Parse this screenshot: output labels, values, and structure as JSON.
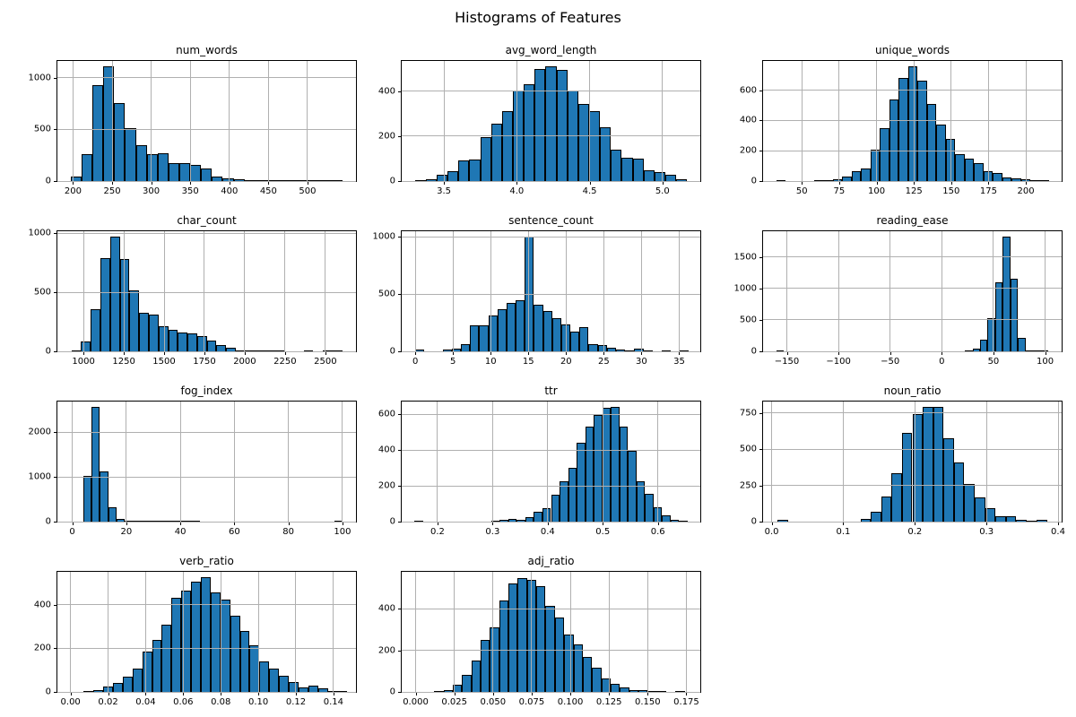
{
  "figure": {
    "title": "Histograms of Features"
  },
  "colors": {
    "bar_fill": "#1f77b4",
    "bar_edge": "#000000",
    "grid": "#b0b0b0",
    "spine": "#000000"
  },
  "chart_data": {
    "type": "bar",
    "subtype": "histogram-grid",
    "title": "Histograms of Features",
    "grid_on": true,
    "layout": {
      "rows": 4,
      "cols": 3
    },
    "subplots": [
      {
        "id": "num_words",
        "title": "num_words",
        "row": 0,
        "col": 0,
        "xlim": [
          180,
          562
        ],
        "ylim": [
          0,
          1165
        ],
        "xticks": [
          200,
          250,
          300,
          350,
          400,
          450,
          500
        ],
        "xtick_labels": [
          "200",
          "250",
          "300",
          "350",
          "400",
          "450",
          "500"
        ],
        "yticks": [
          0,
          500,
          1000
        ],
        "ytick_labels": [
          "0",
          "500",
          "1000"
        ],
        "bin_start": 197,
        "bin_width": 13.9,
        "counts": [
          40,
          260,
          930,
          1110,
          760,
          510,
          350,
          260,
          270,
          170,
          170,
          160,
          125,
          45,
          25,
          15,
          8,
          5,
          3,
          2,
          1,
          1,
          1,
          1,
          2
        ]
      },
      {
        "id": "avg_word_length",
        "title": "avg_word_length",
        "row": 0,
        "col": 1,
        "xlim": [
          3.21,
          5.26
        ],
        "ylim": [
          0,
          535
        ],
        "xticks": [
          3.5,
          4.0,
          4.5,
          5.0
        ],
        "xtick_labels": [
          "3.5",
          "4.0",
          "4.5",
          "5.0"
        ],
        "yticks": [
          0,
          200,
          400
        ],
        "ytick_labels": [
          "0",
          "200",
          "400"
        ],
        "bin_start": 3.3,
        "bin_width": 0.0748,
        "counts": [
          3,
          8,
          30,
          42,
          90,
          95,
          197,
          257,
          310,
          405,
          430,
          500,
          510,
          497,
          405,
          345,
          312,
          238,
          140,
          105,
          98,
          48,
          38,
          30,
          8
        ]
      },
      {
        "id": "unique_words",
        "title": "unique_words",
        "row": 0,
        "col": 2,
        "xlim": [
          24,
          224
        ],
        "ylim": [
          0,
          793
        ],
        "xticks": [
          50,
          75,
          100,
          125,
          150,
          175,
          200
        ],
        "xtick_labels": [
          "50",
          "75",
          "100",
          "125",
          "150",
          "175",
          "200"
        ],
        "yticks": [
          0,
          200,
          400,
          600
        ],
        "ytick_labels": [
          "0",
          "200",
          "400",
          "600"
        ],
        "bin_start": 33,
        "bin_width": 6.3,
        "counts": [
          3,
          0,
          0,
          0,
          2,
          8,
          12,
          30,
          65,
          82,
          205,
          350,
          540,
          680,
          755,
          660,
          510,
          370,
          280,
          180,
          150,
          120,
          65,
          55,
          25,
          15,
          10,
          3,
          3
        ]
      },
      {
        "id": "char_count",
        "title": "char_count",
        "row": 1,
        "col": 0,
        "xlim": [
          838,
          2690
        ],
        "ylim": [
          0,
          1019
        ],
        "xticks": [
          1000,
          1250,
          1500,
          1750,
          2000,
          2250,
          2500
        ],
        "xtick_labels": [
          "1000",
          "1250",
          "1500",
          "1750",
          "2000",
          "2250",
          "2500"
        ],
        "yticks": [
          0,
          500,
          1000
        ],
        "ytick_labels": [
          "0",
          "500",
          "1000"
        ],
        "bin_start": 925,
        "bin_width": 60,
        "counts": [
          10,
          85,
          355,
          790,
          970,
          780,
          515,
          330,
          310,
          215,
          180,
          160,
          150,
          130,
          90,
          50,
          30,
          10,
          3,
          2,
          1,
          1,
          0,
          0,
          1,
          0,
          1,
          2
        ]
      },
      {
        "id": "sentence_count",
        "title": "sentence_count",
        "row": 1,
        "col": 1,
        "xlim": [
          -1.8,
          37.8
        ],
        "ylim": [
          0,
          1050
        ],
        "xticks": [
          0,
          5,
          10,
          15,
          20,
          25,
          30,
          35
        ],
        "xtick_labels": [
          "0",
          "5",
          "10",
          "15",
          "20",
          "25",
          "30",
          "35"
        ],
        "yticks": [
          0,
          500,
          1000
        ],
        "ytick_labels": [
          "0",
          "500",
          "1000"
        ],
        "bin_start": 0,
        "bin_width": 1.21,
        "counts": [
          15,
          0,
          0,
          15,
          25,
          60,
          230,
          225,
          310,
          370,
          420,
          450,
          1000,
          410,
          350,
          290,
          235,
          170,
          215,
          65,
          55,
          30,
          15,
          10,
          25,
          5,
          0,
          1,
          0,
          2
        ]
      },
      {
        "id": "reading_ease",
        "title": "reading_ease",
        "row": 1,
        "col": 2,
        "xlim": [
          -173,
          116
        ],
        "ylim": [
          0,
          1911
        ],
        "xticks": [
          -150,
          -100,
          -50,
          0,
          50,
          100
        ],
        "xtick_labels": [
          "−150",
          "−100",
          "−50",
          "0",
          "50",
          "100"
        ],
        "yticks": [
          0,
          500,
          1000,
          1500
        ],
        "ytick_labels": [
          "0",
          "500",
          "1000",
          "1500"
        ],
        "bin_start": -160,
        "bin_width": 7.3,
        "counts": [
          2,
          0,
          0,
          0,
          0,
          0,
          0,
          0,
          0,
          0,
          0,
          0,
          0,
          0,
          0,
          0,
          0,
          0,
          0,
          0,
          0,
          0,
          0,
          0,
          0,
          10,
          45,
          185,
          530,
          1100,
          1820,
          1160,
          215,
          20,
          15,
          5
        ]
      },
      {
        "id": "fog_index",
        "title": "fog_index",
        "row": 2,
        "col": 0,
        "xlim": [
          -5.5,
          105
        ],
        "ylim": [
          0,
          2688
        ],
        "xticks": [
          0,
          20,
          40,
          60,
          80,
          100
        ],
        "xtick_labels": [
          "0",
          "20",
          "40",
          "60",
          "80",
          "100"
        ],
        "yticks": [
          0,
          1000,
          2000
        ],
        "ytick_labels": [
          "0",
          "1000",
          "2000"
        ],
        "bin_start": 4,
        "bin_width": 3.1,
        "counts": [
          1030,
          2560,
          1130,
          330,
          60,
          15,
          10,
          8,
          5,
          3,
          2,
          2,
          1,
          1,
          0,
          0,
          0,
          0,
          0,
          0,
          0,
          0,
          0,
          0,
          0,
          0,
          0,
          0,
          0,
          0,
          2
        ]
      },
      {
        "id": "ttr",
        "title": "ttr",
        "row": 2,
        "col": 1,
        "xlim": [
          0.135,
          0.677
        ],
        "ylim": [
          0,
          672
        ],
        "xticks": [
          0.2,
          0.3,
          0.4,
          0.5,
          0.6
        ],
        "xtick_labels": [
          "0.2",
          "0.3",
          "0.4",
          "0.5",
          "0.6"
        ],
        "yticks": [
          0,
          200,
          400,
          600
        ],
        "ytick_labels": [
          "0",
          "200",
          "400",
          "600"
        ],
        "bin_start": 0.158,
        "bin_width": 0.0155,
        "counts": [
          3,
          0,
          0,
          0,
          0,
          0,
          0,
          0,
          0,
          5,
          10,
          15,
          12,
          25,
          55,
          75,
          150,
          225,
          300,
          440,
          530,
          595,
          635,
          640,
          530,
          395,
          225,
          155,
          80,
          35,
          10,
          5
        ]
      },
      {
        "id": "noun_ratio",
        "title": "noun_ratio",
        "row": 2,
        "col": 2,
        "xlim": [
          -0.012,
          0.405
        ],
        "ylim": [
          0,
          830
        ],
        "xticks": [
          0.0,
          0.1,
          0.2,
          0.3,
          0.4
        ],
        "xtick_labels": [
          "0.0",
          "0.1",
          "0.2",
          "0.3",
          "0.4"
        ],
        "yticks": [
          0,
          250,
          500,
          750
        ],
        "ytick_labels": [
          "0",
          "250",
          "500",
          "750"
        ],
        "bin_start": 0.008,
        "bin_width": 0.0145,
        "counts": [
          10,
          0,
          0,
          0,
          0,
          0,
          0,
          0,
          20,
          70,
          175,
          335,
          615,
          745,
          790,
          790,
          575,
          410,
          260,
          165,
          95,
          40,
          35,
          15,
          3,
          10
        ]
      },
      {
        "id": "verb_ratio",
        "title": "verb_ratio",
        "row": 3,
        "col": 0,
        "xlim": [
          -0.007,
          0.152
        ],
        "ylim": [
          0,
          551
        ],
        "xticks": [
          0.0,
          0.02,
          0.04,
          0.06,
          0.08,
          0.1,
          0.12,
          0.14
        ],
        "xtick_labels": [
          "0.00",
          "0.02",
          "0.04",
          "0.06",
          "0.08",
          "0.10",
          "0.12",
          "0.14"
        ],
        "yticks": [
          0,
          200,
          400
        ],
        "ytick_labels": [
          "0",
          "200",
          "400"
        ],
        "bin_start": 0.007,
        "bin_width": 0.0052,
        "counts": [
          5,
          8,
          25,
          40,
          70,
          105,
          185,
          240,
          310,
          430,
          465,
          505,
          525,
          455,
          425,
          350,
          280,
          215,
          140,
          105,
          75,
          45,
          20,
          30,
          15,
          5,
          3
        ]
      },
      {
        "id": "adj_ratio",
        "title": "adj_ratio",
        "row": 3,
        "col": 1,
        "xlim": [
          -0.009,
          0.184
        ],
        "ylim": [
          0,
          578
        ],
        "xticks": [
          0.0,
          0.025,
          0.05,
          0.075,
          0.1,
          0.125,
          0.15,
          0.175
        ],
        "xtick_labels": [
          "0.000",
          "0.025",
          "0.050",
          "0.075",
          "0.100",
          "0.125",
          "0.150",
          "0.175"
        ],
        "yticks": [
          0,
          200,
          400
        ],
        "ytick_labels": [
          "0",
          "200",
          "400"
        ],
        "bin_start": 0.012,
        "bin_width": 0.006,
        "counts": [
          5,
          8,
          35,
          80,
          150,
          250,
          310,
          440,
          520,
          550,
          540,
          510,
          415,
          360,
          275,
          230,
          170,
          115,
          65,
          40,
          20,
          10,
          10,
          5,
          3,
          0,
          2
        ]
      }
    ]
  }
}
